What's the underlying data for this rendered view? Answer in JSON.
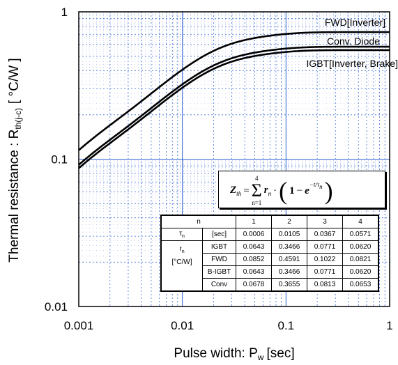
{
  "chart_data": {
    "type": "line",
    "xscale": "log",
    "yscale": "log",
    "xlim": [
      0.001,
      1
    ],
    "ylim": [
      0.01,
      1
    ],
    "grid": true,
    "xlabel": "Pulse width: P",
    "xlabel_sub": "w",
    "xlabel_unit": "[sec]",
    "ylabel": "Thermal resistance : R",
    "ylabel_sub": "th(j-c)",
    "ylabel_unit": "[ °C/W ]",
    "x_tick_labels": [
      "0.001",
      "0.01",
      "0.1",
      "1"
    ],
    "y_tick_labels": [
      "0.01",
      "0.1",
      "1"
    ],
    "series": [
      {
        "name": "FWD[Inverter]",
        "tau": [
          0.0006,
          0.0105,
          0.0367,
          0.0571
        ],
        "r": [
          0.0852,
          0.4591,
          0.1022,
          0.0821
        ]
      },
      {
        "name": "Conv. Diode",
        "tau": [
          0.0006,
          0.0105,
          0.0367,
          0.0571
        ],
        "r": [
          0.0678,
          0.3655,
          0.0813,
          0.0653
        ]
      },
      {
        "name": "IGBT[Inverter, Brake]",
        "tau": [
          0.0006,
          0.0105,
          0.0367,
          0.0571
        ],
        "r": [
          0.0643,
          0.3466,
          0.0771,
          0.062
        ]
      }
    ],
    "formula": {
      "lhs": "Z",
      "lhs_sub": "th",
      "sum_top": "4",
      "sum_bottom": "n=1",
      "term": "r",
      "term_sub": "n",
      "one": "1",
      "e": "e",
      "exp_num": "t",
      "exp_den": "τ",
      "exp_den_sub": "n"
    },
    "table": {
      "header": [
        "n",
        "",
        "1",
        "2",
        "3",
        "4"
      ],
      "tau_label": "τ",
      "tau_sub": "n",
      "tau_unit": "[sec]",
      "tau_values": [
        "0.0006",
        "0.0105",
        "0.0367",
        "0.0571"
      ],
      "r_label": "r",
      "r_sub": "n",
      "r_unit": "[°C/W]",
      "rows": [
        {
          "name": "IGBT",
          "values": [
            "0.0643",
            "0.3466",
            "0.0771",
            "0.0620"
          ]
        },
        {
          "name": "FWD",
          "values": [
            "0.0852",
            "0.4591",
            "0.1022",
            "0.0821"
          ]
        },
        {
          "name": "B-IGBT",
          "values": [
            "0.0643",
            "0.3466",
            "0.0771",
            "0.0620"
          ]
        },
        {
          "name": "Conv",
          "values": [
            "0.0678",
            "0.3655",
            "0.0813",
            "0.0653"
          ]
        }
      ]
    }
  }
}
